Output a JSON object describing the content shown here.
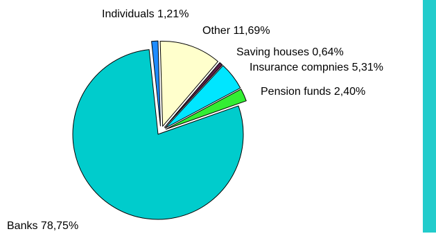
{
  "chart_data": {
    "type": "pie",
    "title": "",
    "legend": "none",
    "slices": [
      {
        "label": "Individuals",
        "value_text": "1,21%",
        "value": 1.21,
        "color": "#1E8CFF"
      },
      {
        "label": "Other",
        "value_text": "11,69%",
        "value": 11.69,
        "color": "#FFFFCC"
      },
      {
        "label": "Saving houses",
        "value_text": "0,64%",
        "value": 0.64,
        "color": "#5A1E46"
      },
      {
        "label": "Insurance compnies",
        "value_text": "5,31%",
        "value": 5.31,
        "color": "#00E6FF"
      },
      {
        "label": "Pension funds",
        "value_text": "2,40%",
        "value": 2.4,
        "color": "#33EE33"
      },
      {
        "label": "Banks",
        "value_text": "78,75%",
        "value": 78.75,
        "color": "#00CCCC"
      }
    ]
  },
  "side_strip_color": "#22CCCC"
}
